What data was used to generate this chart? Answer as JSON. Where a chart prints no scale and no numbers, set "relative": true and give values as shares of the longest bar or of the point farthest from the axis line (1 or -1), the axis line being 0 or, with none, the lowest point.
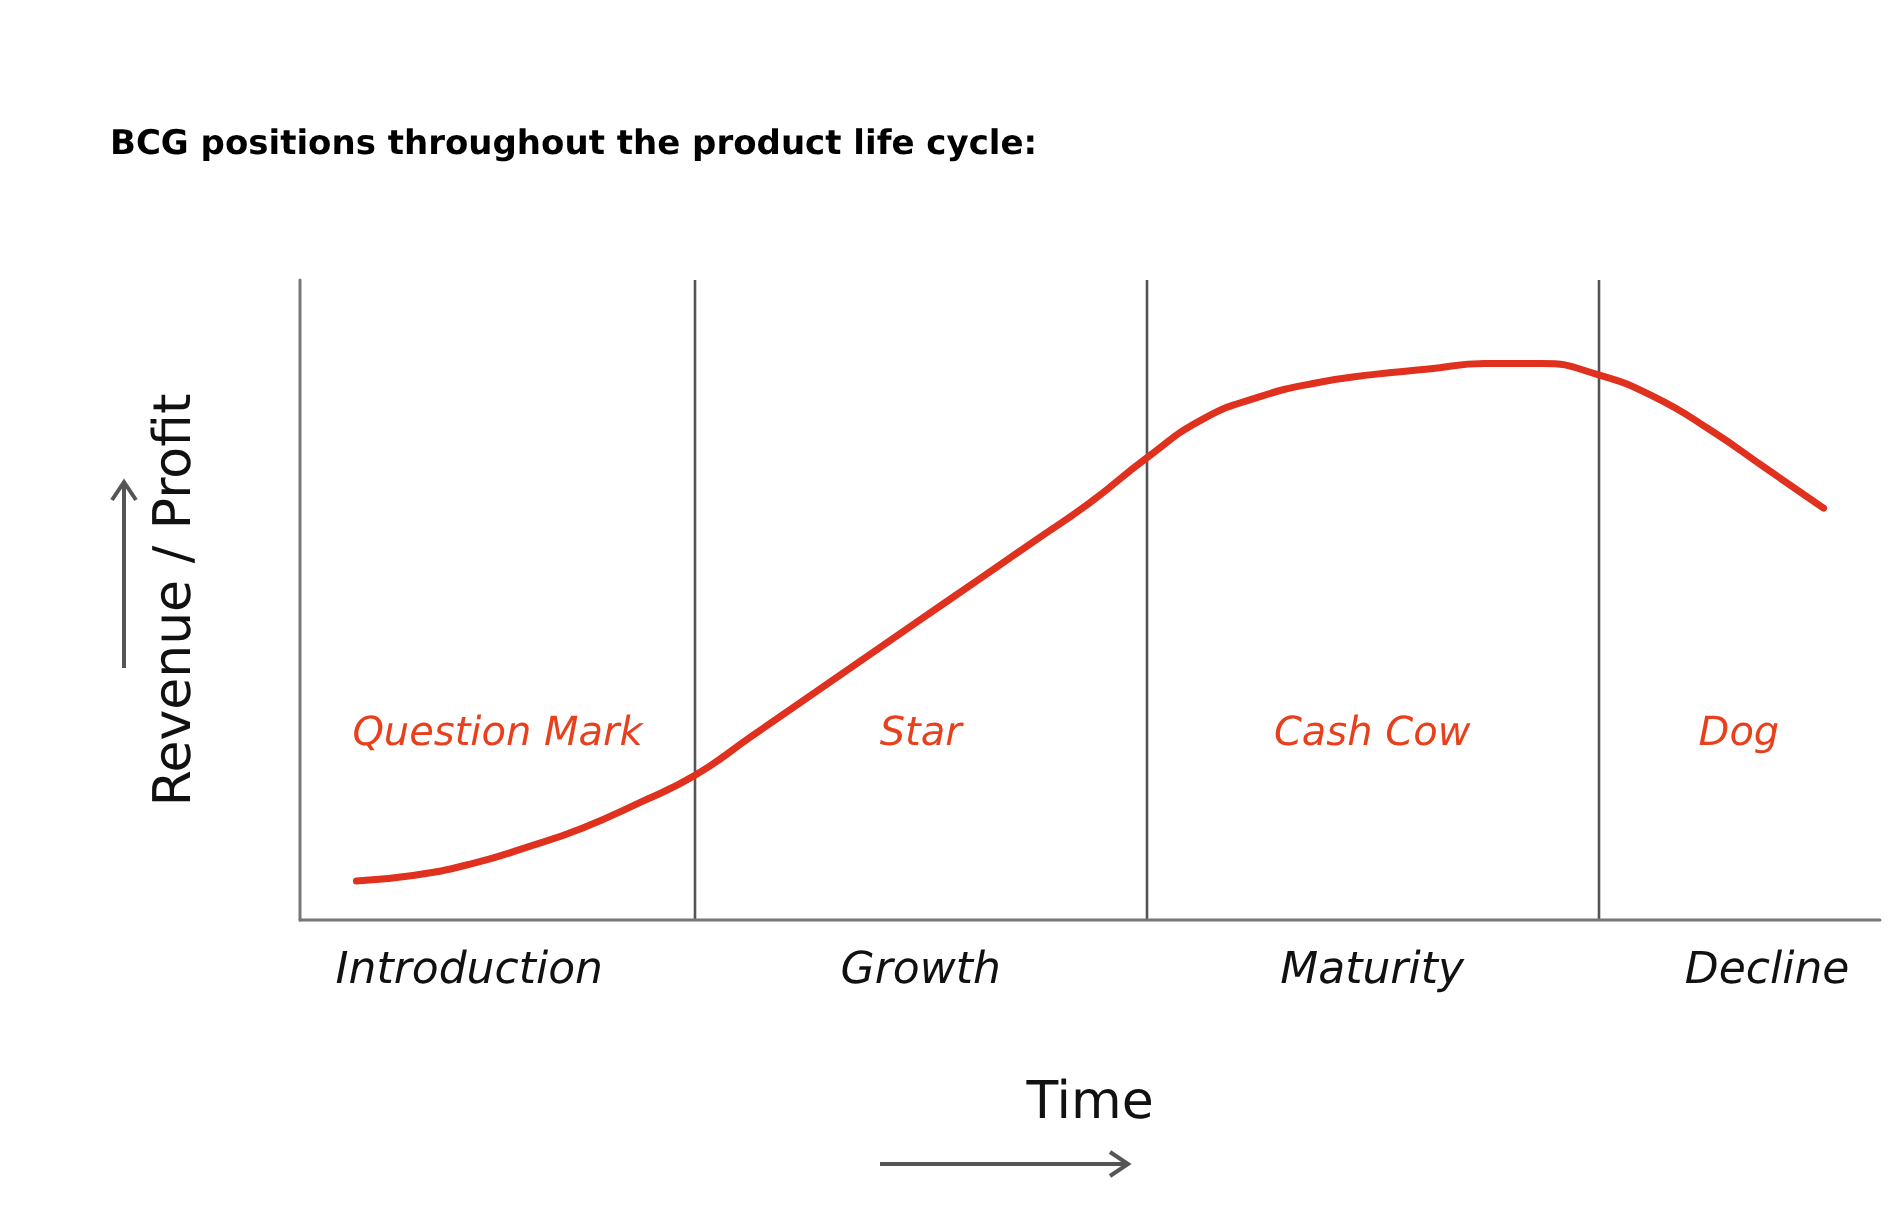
{
  "chart_data": {
    "type": "line",
    "title": "BCG positions throughout the product life cycle:",
    "xlabel": "Time",
    "ylabel": "Revenue / Profit",
    "relative": true,
    "categories": [
      null,
      null,
      null,
      "Introduction",
      null,
      null,
      null,
      null,
      null,
      null,
      null,
      "Growth",
      null,
      null,
      null,
      null,
      null,
      null,
      null,
      "Maturity",
      null,
      null,
      null,
      null,
      null,
      null,
      "Decline",
      null,
      null
    ],
    "tick_labels": "x",
    "marker": "none",
    "line_style": "solid",
    "series": [
      {
        "color": "#e0301e",
        "values": [
          null,
          0.07,
          0.08,
          0.1,
          0.13,
          0.165,
          0.21,
          0.26,
          0.33,
          0.4,
          0.47,
          0.54,
          0.61,
          0.68,
          0.75,
          0.83,
          0.9,
          0.94,
          0.965,
          0.98,
          0.99,
          1.0,
          1.0,
          0.98,
          0.94,
          0.88,
          0.81,
          0.74,
          null
        ]
      }
    ],
    "grid": "x",
    "annotations": [
      "Question Mark",
      "Star",
      "Cash Cow",
      "Dog"
    ]
  }
}
